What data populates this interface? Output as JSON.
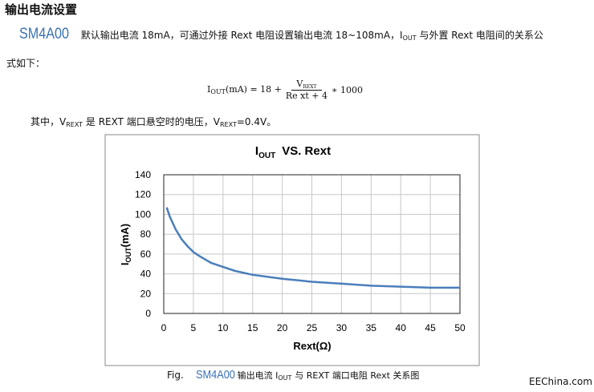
{
  "title": "输出电流设置",
  "intro": {
    "logo": "SM4A00",
    "text1": "默认输出电流 18mA，可通过外接 Rext 电阻设置输出电流 18~108mA，I",
    "sub": "OUT",
    "text2": "与外置 Rext 电阻间的关系公",
    "text3": "式如下："
  },
  "formula": {
    "lhs": "I",
    "lhs_sub": "OUT",
    "lhs_rest": "(mA) = 18 +",
    "num": "V",
    "num_sub": "REXT",
    "den": "Re xt + 4",
    "rhs": "∗ 1000"
  },
  "note": {
    "t1": "其中，V",
    "s1": "REXT",
    "t2": "是 REXT 端口悬空时的电压，V",
    "s2": "REXT",
    "t3": "=0.4V。"
  },
  "chart_data": {
    "type": "line",
    "title": {
      "main": "I",
      "sub": "OUT",
      "rest": "VS. Rext"
    },
    "ylabel": {
      "main": "I",
      "sub": "OUT",
      "rest": "(mA)"
    },
    "xlabel": "Rext(Ω)",
    "x": [
      0.5,
      1,
      2,
      3,
      4,
      5,
      6,
      8,
      10,
      12,
      15,
      20,
      25,
      30,
      35,
      40,
      45,
      50
    ],
    "values": [
      107,
      98,
      85,
      75,
      68,
      62,
      58,
      51,
      47,
      43,
      39,
      35,
      32,
      30,
      28,
      27,
      26,
      26
    ],
    "color": "#4a7ebb",
    "xlim": [
      0,
      50
    ],
    "xticks": [
      0,
      5,
      10,
      15,
      20,
      25,
      30,
      35,
      40,
      45,
      50
    ],
    "ylim": [
      0,
      140
    ],
    "yticks": [
      0,
      20,
      40,
      60,
      80,
      100,
      120,
      140
    ],
    "grid": true
  },
  "caption": {
    "fig": "Fig.",
    "logo": "SM4A00",
    "t1": "输出电流 I",
    "sub": "OUT",
    "t2": "与 REXT 端口电阻 Rext 关系图"
  },
  "watermark": "EEChina.com"
}
